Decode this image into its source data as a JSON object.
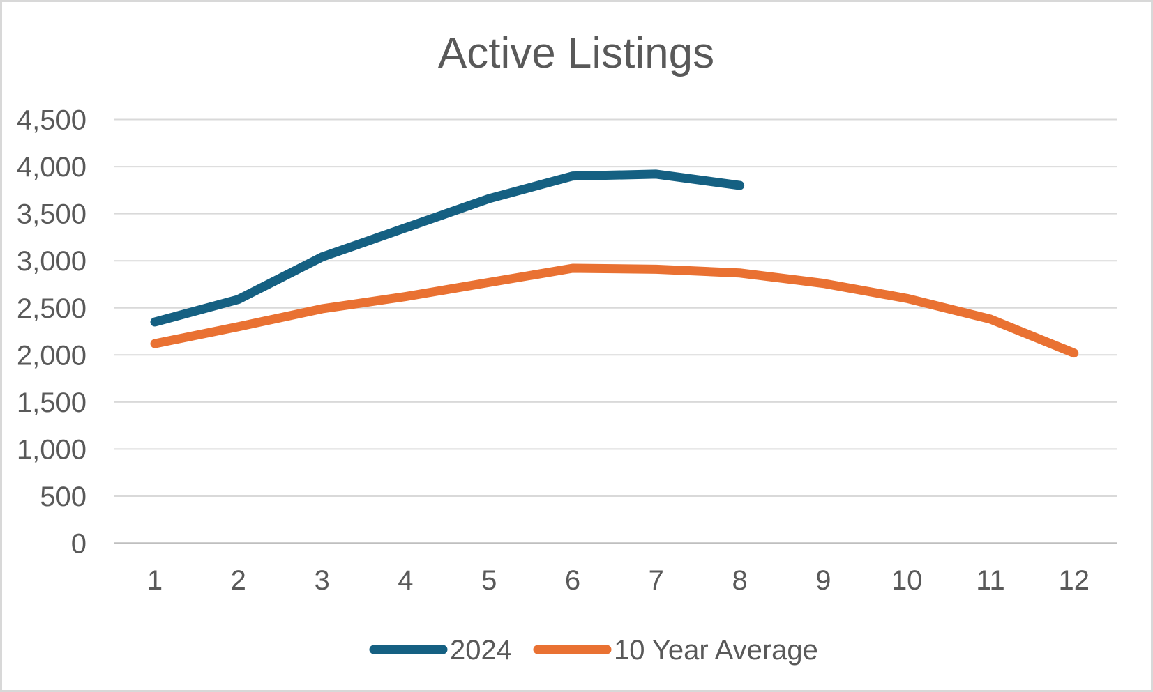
{
  "title": "Active Listings",
  "colors": {
    "series_2024": "#156082",
    "series_10yr_avg": "#E97132",
    "gridline": "#D9D9D9",
    "axis_line": "#BFBFBF",
    "text": "#595959",
    "frame_border": "#D8D8D8",
    "background": "#FFFFFF"
  },
  "chart_data": {
    "type": "line",
    "title": "Active Listings",
    "xlabel": "",
    "ylabel": "",
    "x": [
      1,
      2,
      3,
      4,
      5,
      6,
      7,
      8,
      9,
      10,
      11,
      12
    ],
    "xtick_labels": [
      "1",
      "2",
      "3",
      "4",
      "5",
      "6",
      "7",
      "8",
      "9",
      "10",
      "11",
      "12"
    ],
    "ylim": [
      0,
      4500
    ],
    "ytick_step": 500,
    "yticks": [
      0,
      500,
      1000,
      1500,
      2000,
      2500,
      3000,
      3500,
      4000,
      4500
    ],
    "ytick_labels": [
      "0",
      "500",
      "1,000",
      "1,500",
      "2,000",
      "2,500",
      "3,000",
      "3,500",
      "4,000",
      "4,500"
    ],
    "grid": "horizontal",
    "legend_position": "bottom-center",
    "series": [
      {
        "name": "2024",
        "color": "#156082",
        "x": [
          1,
          2,
          3,
          4,
          5,
          6,
          7,
          8
        ],
        "values": [
          2350,
          2590,
          3040,
          3350,
          3660,
          3900,
          3920,
          3800
        ]
      },
      {
        "name": "10 Year Average",
        "color": "#E97132",
        "x": [
          1,
          2,
          3,
          4,
          5,
          6,
          7,
          8,
          9,
          10,
          11,
          12
        ],
        "values": [
          2120,
          2300,
          2490,
          2620,
          2770,
          2920,
          2910,
          2870,
          2760,
          2600,
          2380,
          2020
        ]
      }
    ]
  },
  "legend": {
    "items": [
      {
        "label": "2024"
      },
      {
        "label": "10 Year Average"
      }
    ]
  }
}
